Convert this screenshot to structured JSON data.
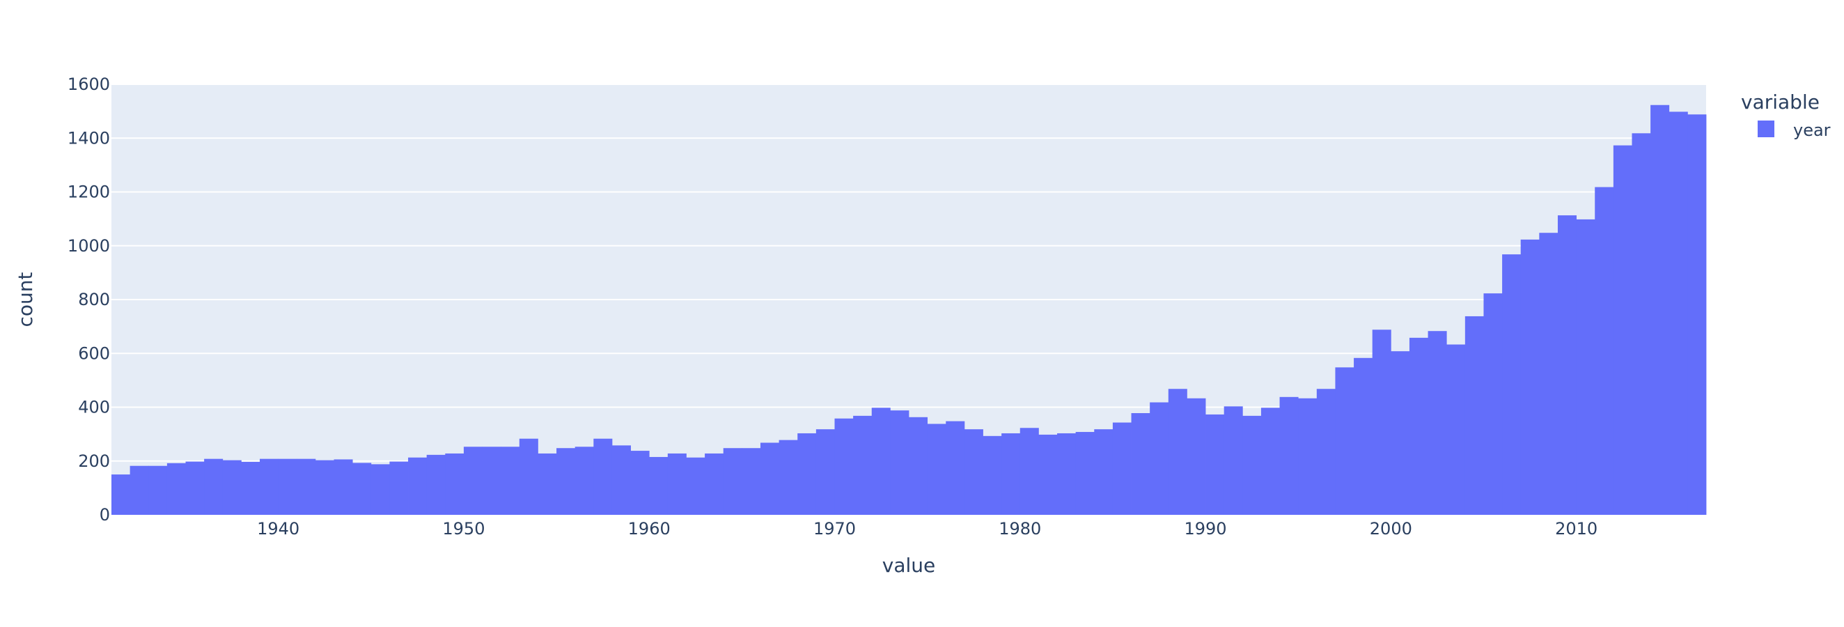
{
  "chart_data": {
    "type": "bar",
    "title": "",
    "xlabel": "value",
    "ylabel": "count",
    "xlim": [
      1931,
      2017
    ],
    "ylim": [
      0,
      1600
    ],
    "x_ticks": [
      1940,
      1950,
      1960,
      1970,
      1980,
      1990,
      2000,
      2010
    ],
    "y_ticks": [
      0,
      200,
      400,
      600,
      800,
      1000,
      1200,
      1400,
      1600
    ],
    "grid": true,
    "legend": {
      "title": "variable",
      "placement": "top-right",
      "entries": [
        {
          "name": "year",
          "color": "#636efa"
        }
      ]
    },
    "colors": {
      "plot_background": "#e5ecf6",
      "bar": "#636efa",
      "grid": "#ffffff",
      "text": "#2a3f5f"
    },
    "series": [
      {
        "name": "year",
        "bin_width": 1,
        "x": [
          1931,
          1932,
          1933,
          1934,
          1935,
          1936,
          1937,
          1938,
          1939,
          1940,
          1941,
          1942,
          1943,
          1944,
          1945,
          1946,
          1947,
          1948,
          1949,
          1950,
          1951,
          1952,
          1953,
          1954,
          1955,
          1956,
          1957,
          1958,
          1959,
          1960,
          1961,
          1962,
          1963,
          1964,
          1965,
          1966,
          1967,
          1968,
          1969,
          1970,
          1971,
          1972,
          1973,
          1974,
          1975,
          1976,
          1977,
          1978,
          1979,
          1980,
          1981,
          1982,
          1983,
          1984,
          1985,
          1986,
          1987,
          1988,
          1989,
          1990,
          1991,
          1992,
          1993,
          1994,
          1995,
          1996,
          1997,
          1998,
          1999,
          2000,
          2001,
          2002,
          2003,
          2004,
          2005,
          2006,
          2007,
          2008,
          2009,
          2010,
          2011,
          2012,
          2013,
          2014,
          2015,
          2016
        ],
        "values": [
          150,
          182,
          182,
          192,
          198,
          208,
          203,
          197,
          208,
          208,
          208,
          203,
          206,
          193,
          188,
          198,
          213,
          223,
          228,
          253,
          253,
          253,
          283,
          228,
          248,
          253,
          283,
          258,
          238,
          215,
          228,
          213,
          228,
          248,
          248,
          268,
          278,
          303,
          318,
          358,
          368,
          398,
          388,
          363,
          338,
          348,
          318,
          293,
          303,
          323,
          298,
          303,
          308,
          318,
          343,
          378,
          418,
          468,
          433,
          373,
          403,
          368,
          398,
          438,
          433,
          468,
          548,
          583,
          688,
          608,
          658,
          683,
          633,
          738,
          823,
          968,
          1023,
          1048,
          1113,
          1098,
          1218,
          1373,
          1418,
          1523,
          1498,
          1488
        ]
      }
    ]
  }
}
